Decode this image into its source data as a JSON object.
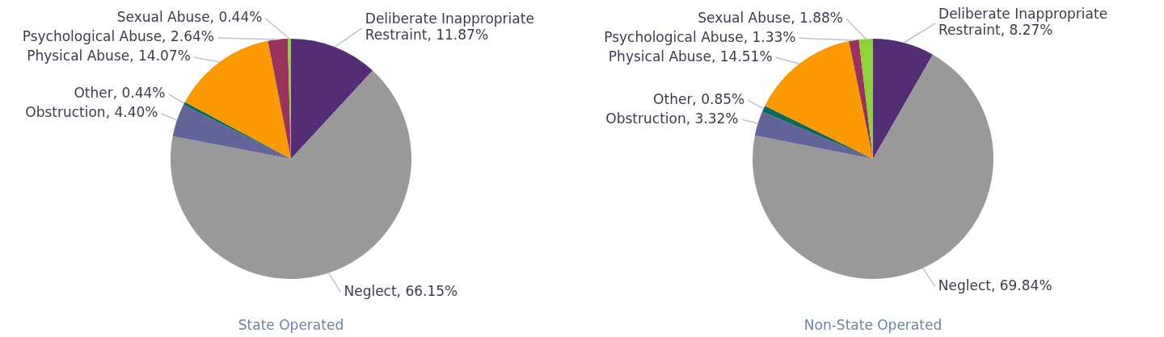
{
  "chart_data": [
    {
      "type": "pie",
      "title": "State Operated",
      "categories": [
        "Deliberate Inappropriate Restraint",
        "Neglect",
        "Obstruction",
        "Other",
        "Physical Abuse",
        "Psychological Abuse",
        "Sexual Abuse"
      ],
      "values": [
        11.87,
        66.15,
        4.4,
        0.44,
        14.07,
        2.64,
        0.44
      ],
      "value_labels": [
        "11.87%",
        "66.15%",
        "4.40%",
        "0.44%",
        "14.07%",
        "2.64%",
        "0.44%"
      ],
      "colors": [
        "#542e74",
        "#999999",
        "#63649a",
        "#0b6a5c",
        "#fb9900",
        "#9a325e",
        "#8fd33b"
      ],
      "legend": false
    },
    {
      "type": "pie",
      "title": "Non-State Operated",
      "categories": [
        "Deliberate Inappropriate Restraint",
        "Neglect",
        "Obstruction",
        "Other",
        "Physical Abuse",
        "Psychological Abuse",
        "Sexual Abuse"
      ],
      "values": [
        8.27,
        69.84,
        3.32,
        0.85,
        14.51,
        1.33,
        1.88
      ],
      "value_labels": [
        "8.27%",
        "69.84%",
        "3.32%",
        "0.85%",
        "14.51%",
        "1.33%",
        "1.88%"
      ],
      "colors": [
        "#542e74",
        "#999999",
        "#63649a",
        "#0b6a5c",
        "#fb9900",
        "#9a325e",
        "#8fd33b"
      ],
      "legend": false
    }
  ]
}
